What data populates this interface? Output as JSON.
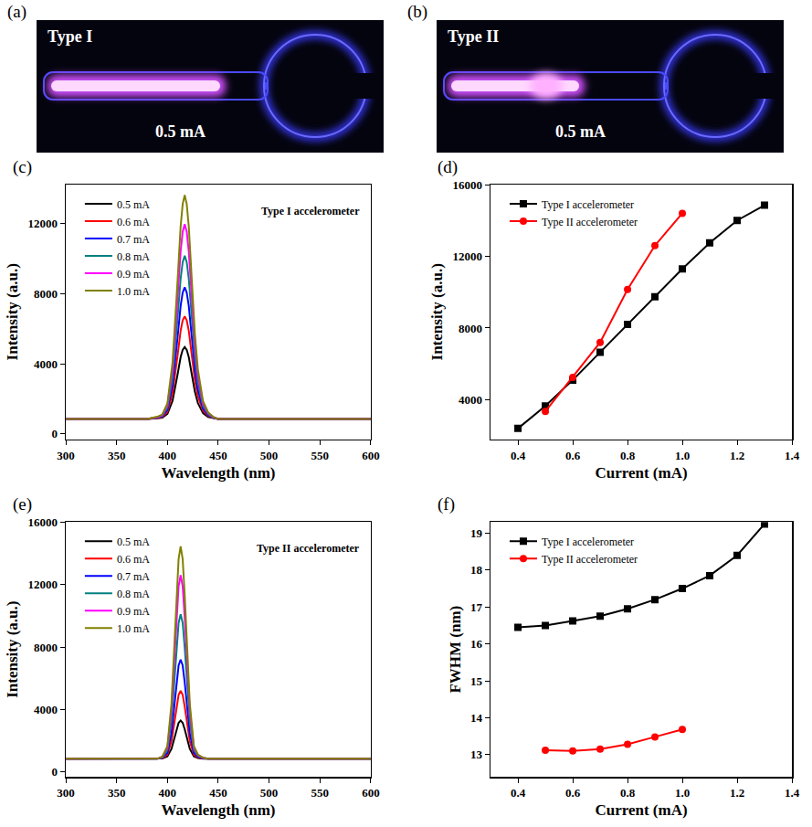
{
  "photos": [
    {
      "panel": "(a)",
      "title": "Type I",
      "annotation": "0.5 mA"
    },
    {
      "panel": "(b)",
      "title": "Type II",
      "annotation": "0.5 mA"
    }
  ],
  "chart_data": [
    {
      "panel": "(c)",
      "type": "line",
      "annotation": "Type I accelerometer",
      "x_label": "Wavelength (nm)",
      "y_label": "Intensity (a.u.)",
      "xlim": [
        300,
        600
      ],
      "xticks": [
        300,
        350,
        400,
        450,
        500,
        550,
        600
      ],
      "ylim": [
        -300,
        14200
      ],
      "yticks": [
        0,
        4000,
        8000,
        12000
      ],
      "grid": false,
      "legend": "upper left",
      "x": [
        300,
        380,
        390,
        395,
        400,
        405,
        410,
        413,
        415,
        417,
        419,
        421,
        424,
        427,
        430,
        435,
        440,
        445,
        450,
        460,
        500,
        600
      ],
      "series": [
        {
          "name": "0.5 mA",
          "color": "#000000",
          "values": [
            850,
            850,
            890,
            930,
            1140,
            1880,
            3390,
            4380,
            4790,
            4950,
            4790,
            4380,
            3390,
            2410,
            1750,
            1180,
            970,
            890,
            850,
            850,
            850,
            850
          ]
        },
        {
          "name": "0.6 mA",
          "color": "#ff0000",
          "values": [
            850,
            850,
            910,
            970,
            1260,
            2310,
            4480,
            5880,
            6470,
            6700,
            6470,
            5880,
            4480,
            3070,
            2140,
            1320,
            1030,
            910,
            850,
            850,
            850,
            850
          ]
        },
        {
          "name": "0.7 mA",
          "color": "#0000ff",
          "values": [
            850,
            850,
            930,
            1000,
            1380,
            2730,
            5500,
            7300,
            8050,
            8350,
            8050,
            7300,
            5500,
            3700,
            2500,
            1450,
            1080,
            930,
            850,
            850,
            850,
            850
          ]
        },
        {
          "name": "0.8 mA",
          "color": "#008080",
          "values": [
            850,
            850,
            940,
            1040,
            1500,
            3180,
            6620,
            8850,
            9780,
            10150,
            9780,
            8850,
            6620,
            4380,
            2900,
            1590,
            1130,
            940,
            850,
            850,
            850,
            850
          ]
        },
        {
          "name": "0.9 mA",
          "color": "#ff00ff",
          "values": [
            850,
            850,
            960,
            1070,
            1630,
            3630,
            7730,
            10400,
            11510,
            11950,
            11510,
            10400,
            7730,
            5070,
            3290,
            1740,
            1180,
            960,
            850,
            850,
            850,
            850
          ]
        },
        {
          "name": "1.0 mA",
          "color": "#808000",
          "values": [
            850,
            850,
            980,
            1110,
            1740,
            4040,
            8750,
            11820,
            13090,
            13600,
            13090,
            11820,
            8750,
            5700,
            3660,
            1870,
            1230,
            980,
            850,
            850,
            850,
            850
          ]
        }
      ]
    },
    {
      "panel": "(d)",
      "type": "line",
      "x_label": "Current (mA)",
      "y_label": "Intensity (a.u.)",
      "xlim": [
        0.3,
        1.4
      ],
      "xticks": [
        0.4,
        0.6,
        0.8,
        {
          "value": 1,
          "label": "1.0"
        },
        1.2,
        1.4
      ],
      "ylim": [
        1800,
        16000
      ],
      "yticks": [
        4000,
        8000,
        12000,
        16000
      ],
      "grid": false,
      "legend": "upper left",
      "x": [
        0.4,
        0.5,
        0.6,
        0.7,
        0.8,
        0.9,
        1.0,
        1.1,
        1.2,
        1.3
      ],
      "series": [
        {
          "name": "Type I accelerometer",
          "color": "#000000",
          "marker": "square",
          "values": [
            2400,
            3650,
            5100,
            6650,
            8200,
            9750,
            11300,
            12750,
            14000,
            14850
          ]
        },
        {
          "name": "Type II accelerometer",
          "color": "#ff0000",
          "marker": "circle",
          "values": [
            null,
            3350,
            5250,
            7200,
            10150,
            12600,
            14400,
            null,
            null,
            null
          ]
        }
      ]
    },
    {
      "panel": "(e)",
      "type": "line",
      "annotation": "Type II accelerometer",
      "x_label": "Wavelength (nm)",
      "y_label": "Intensity (a.u.)",
      "xlim": [
        300,
        600
      ],
      "xticks": [
        300,
        350,
        400,
        450,
        500,
        550,
        600
      ],
      "ylim": [
        -300,
        16000
      ],
      "yticks": [
        0,
        4000,
        8000,
        12000,
        16000
      ],
      "grid": false,
      "legend": "upper left",
      "x": [
        300,
        380,
        390,
        395,
        400,
        404,
        407,
        409,
        411,
        413,
        415,
        417,
        419,
        422,
        426,
        430,
        435,
        440,
        450,
        500,
        600
      ],
      "series": [
        {
          "name": "0.5 mA",
          "color": "#000000",
          "values": [
            850,
            850,
            850,
            870,
            1000,
            1490,
            2200,
            2740,
            3150,
            3300,
            3150,
            2740,
            2200,
            1490,
            1000,
            900,
            860,
            850,
            850,
            850,
            850
          ]
        },
        {
          "name": "0.6 mA",
          "color": "#ff0000",
          "values": [
            850,
            850,
            850,
            890,
            1110,
            1980,
            3240,
            4200,
            4940,
            5200,
            4940,
            4200,
            3240,
            1980,
            1110,
            940,
            870,
            850,
            850,
            850,
            850
          ]
        },
        {
          "name": "0.7 mA",
          "color": "#0000ff",
          "values": [
            850,
            850,
            850,
            910,
            1230,
            2500,
            4340,
            5740,
            6820,
            7200,
            6820,
            5740,
            4340,
            2500,
            1230,
            980,
            880,
            850,
            850,
            850,
            850
          ]
        },
        {
          "name": "0.8 mA",
          "color": "#008080",
          "values": [
            850,
            850,
            850,
            940,
            1410,
            3260,
            5940,
            7970,
            9550,
            10100,
            9550,
            7970,
            5940,
            3260,
            1410,
            1040,
            900,
            850,
            850,
            850,
            850
          ]
        },
        {
          "name": "0.9 mA",
          "color": "#ff00ff",
          "values": [
            850,
            850,
            850,
            970,
            1560,
            3900,
            7310,
            9900,
            11900,
            12600,
            11900,
            9900,
            7310,
            3900,
            1560,
            1090,
            910,
            850,
            850,
            850,
            850
          ]
        },
        {
          "name": "1.0 mA",
          "color": "#808000",
          "values": [
            850,
            850,
            850,
            990,
            1670,
            4390,
            8330,
            11320,
            13630,
            14450,
            13630,
            11320,
            8330,
            4390,
            1670,
            1120,
            920,
            850,
            850,
            850,
            850
          ]
        }
      ]
    },
    {
      "panel": "(f)",
      "type": "line",
      "x_label": "Current (mA)",
      "y_label": "FWHM (nm)",
      "xlim": [
        0.3,
        1.4
      ],
      "xticks": [
        0.4,
        0.6,
        0.8,
        {
          "value": 1,
          "label": "1.0"
        },
        1.2,
        1.4
      ],
      "ylim": [
        12.4,
        19.3
      ],
      "yticks": [
        13,
        14,
        15,
        16,
        17,
        18,
        19
      ],
      "grid": false,
      "legend": "upper left",
      "x": [
        0.4,
        0.5,
        0.6,
        0.7,
        0.8,
        0.9,
        1.0,
        1.1,
        1.2,
        1.3
      ],
      "series": [
        {
          "name": "Type I accelerometer",
          "color": "#000000",
          "marker": "square",
          "values": [
            16.45,
            16.5,
            16.62,
            16.75,
            16.95,
            17.2,
            17.5,
            17.85,
            18.4,
            19.25
          ]
        },
        {
          "name": "Type II accelerometer",
          "color": "#ff0000",
          "marker": "circle",
          "values": [
            null,
            13.12,
            13.1,
            13.15,
            13.28,
            13.48,
            13.68,
            null,
            null,
            null
          ]
        }
      ]
    }
  ]
}
